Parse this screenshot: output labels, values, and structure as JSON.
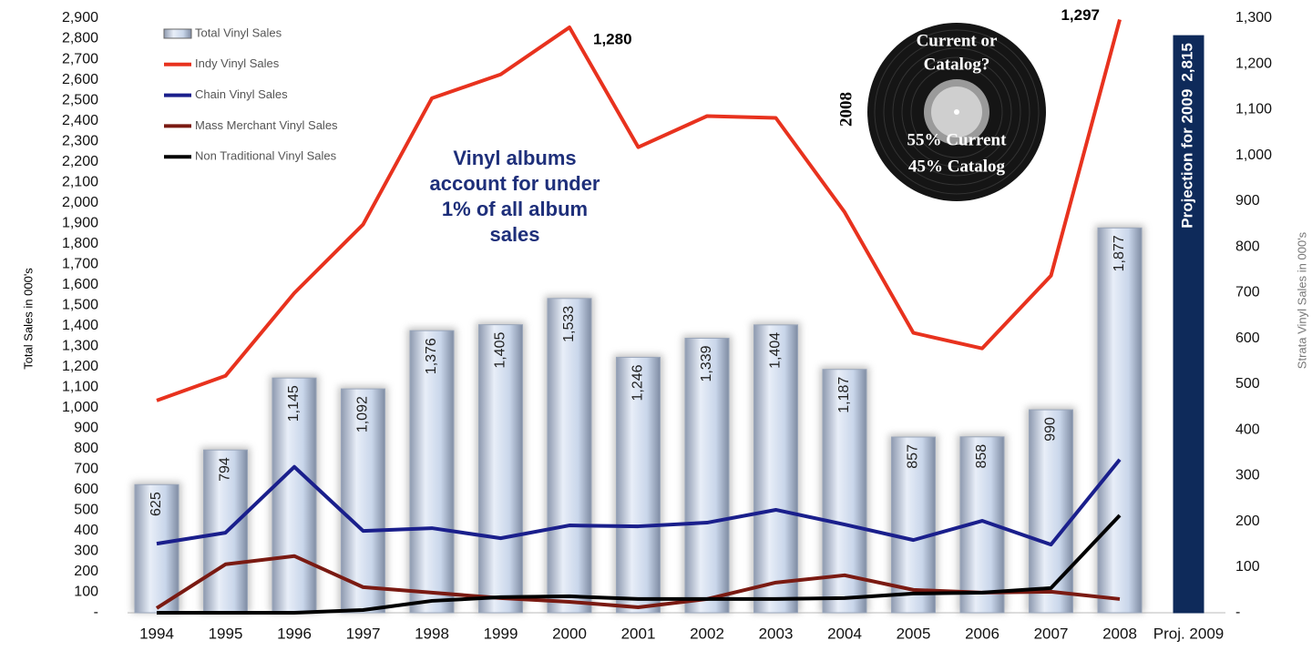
{
  "chart_data": {
    "type": "bar",
    "y_label": "Total Sales in 000's",
    "y2_label": "Strata Vinyl Sales in 000's",
    "annotation": "Vinyl albums account for under 1% of all album sales",
    "projection_label": "Projection for 2009",
    "projection_color": "#0e2a5a",
    "legend": "upper left",
    "categories": [
      "1994",
      "1995",
      "1996",
      "1997",
      "1998",
      "1999",
      "2000",
      "2001",
      "2002",
      "2003",
      "2004",
      "2005",
      "2006",
      "2007",
      "2008",
      "Proj. 2009"
    ],
    "series": [
      {
        "name": "Total Vinyl Sales",
        "type": "bar",
        "color": "#c9d6ea",
        "values": [
          625,
          794,
          1145,
          1092,
          1376,
          1405,
          1533,
          1246,
          1339,
          1404,
          1187,
          857,
          858,
          990,
          1877,
          2815
        ],
        "value_labels": [
          "625",
          "794",
          "1,145",
          "1,092",
          "1,376",
          "1,405",
          "1,533",
          "1,246",
          "1,339",
          "1,404",
          "1,187",
          "857",
          "858",
          "990",
          "1,877",
          "2,815"
        ]
      },
      {
        "name": "Indy Vinyl Sales",
        "type": "line",
        "axis": "y2",
        "color": "#e8321e",
        "values": [
          464,
          518,
          699,
          849,
          1125,
          1177,
          1280,
          1018,
          1086,
          1082,
          876,
          612,
          578,
          737,
          1297,
          null
        ],
        "value_labels": [
          null,
          null,
          null,
          null,
          null,
          null,
          "1,280",
          null,
          null,
          null,
          null,
          null,
          null,
          null,
          "1,297",
          null
        ]
      },
      {
        "name": "Chain Vinyl Sales",
        "type": "line",
        "axis": "y2",
        "color": "#1a1f8c",
        "values": [
          151,
          175,
          319,
          179,
          185,
          163,
          191,
          189,
          197,
          225,
          193,
          159,
          201,
          149,
          335,
          null
        ]
      },
      {
        "name": "Mass Merchant Vinyl Sales",
        "type": "line",
        "axis": "y2",
        "color": "#7a1a12",
        "values": [
          10,
          106,
          124,
          56,
          44,
          32,
          24,
          12,
          30,
          66,
          82,
          50,
          44,
          46,
          30,
          null
        ]
      },
      {
        "name": "Non Traditional Vinyl Sales",
        "type": "line",
        "axis": "y2",
        "color": "#000000",
        "values": [
          0,
          0,
          0,
          6,
          26,
          34,
          36,
          30,
          30,
          30,
          32,
          42,
          44,
          54,
          213,
          null
        ]
      }
    ],
    "ylim": [
      0,
      2900
    ],
    "yticks": [
      {
        "value": 0,
        "label": "-"
      },
      100,
      200,
      300,
      400,
      500,
      600,
      700,
      800,
      900,
      {
        "value": 1000,
        "label": "1,000"
      },
      {
        "value": 1100,
        "label": "1,100"
      },
      {
        "value": 1200,
        "label": "1,200"
      },
      {
        "value": 1300,
        "label": "1,300"
      },
      {
        "value": 1400,
        "label": "1,400"
      },
      {
        "value": 1500,
        "label": "1,500"
      },
      {
        "value": 1600,
        "label": "1,600"
      },
      {
        "value": 1700,
        "label": "1,700"
      },
      {
        "value": 1800,
        "label": "1,800"
      },
      {
        "value": 1900,
        "label": "1,900"
      },
      {
        "value": 2000,
        "label": "2,000"
      },
      {
        "value": 2100,
        "label": "2,100"
      },
      {
        "value": 2200,
        "label": "2,200"
      },
      {
        "value": 2300,
        "label": "2,300"
      },
      {
        "value": 2400,
        "label": "2,400"
      },
      {
        "value": 2500,
        "label": "2,500"
      },
      {
        "value": 2600,
        "label": "2,600"
      },
      {
        "value": 2700,
        "label": "2,700"
      },
      {
        "value": 2800,
        "label": "2,800"
      },
      {
        "value": 2900,
        "label": "2,900"
      }
    ],
    "y2lim": [
      0,
      1300
    ],
    "y2ticks": [
      {
        "value": 0,
        "label": "-"
      },
      100,
      200,
      300,
      400,
      500,
      600,
      700,
      800,
      900,
      {
        "value": 1000,
        "label": "1,000"
      },
      {
        "value": 1100,
        "label": "1,100"
      },
      {
        "value": 1200,
        "label": "1,200"
      },
      {
        "value": 1300,
        "label": "1,300"
      }
    ],
    "record": {
      "year": "2008",
      "question_lines": [
        "Current or",
        "Catalog?"
      ],
      "split_lines": [
        "55% Current",
        "45% Catalog"
      ]
    }
  }
}
